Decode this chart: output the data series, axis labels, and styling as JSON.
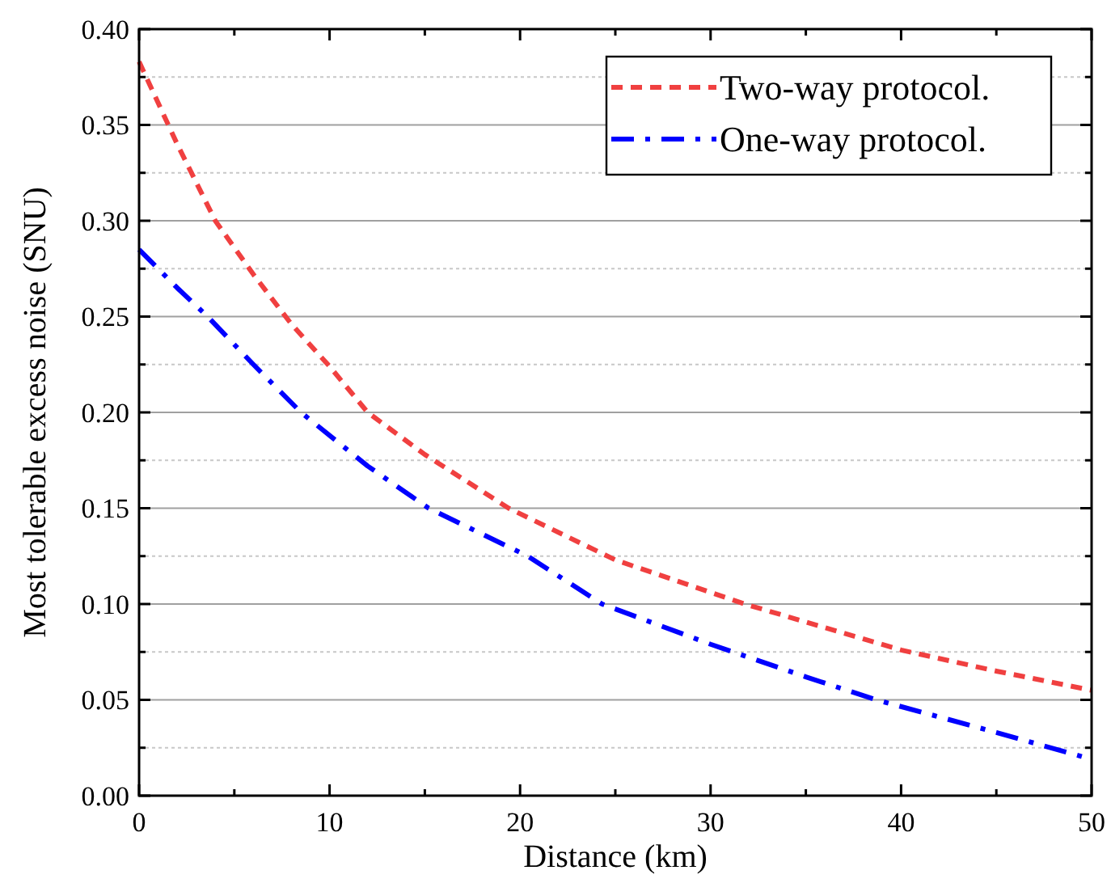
{
  "chart_data": {
    "type": "line",
    "xlabel": "Distance (km)",
    "ylabel": "Most tolerable excess noise (SNU)",
    "xlim": [
      0,
      50
    ],
    "xticks": [
      0,
      {
        "value": 5,
        "label": null
      },
      10,
      {
        "value": 15,
        "label": null
      },
      20,
      {
        "value": 25,
        "label": null
      },
      30,
      {
        "value": 35,
        "label": null
      },
      40,
      {
        "value": 45,
        "label": null
      },
      50
    ],
    "ylim": [
      0,
      0.4
    ],
    "yticks": [
      {
        "value": 0,
        "label": "0.00"
      },
      {
        "value": 0.025,
        "label": null
      },
      {
        "value": 0.05,
        "label": "0.05"
      },
      {
        "value": 0.075,
        "label": null
      },
      {
        "value": 0.1,
        "label": "0.10"
      },
      {
        "value": 0.125,
        "label": null
      },
      {
        "value": 0.15,
        "label": "0.15"
      },
      {
        "value": 0.175,
        "label": null
      },
      {
        "value": 0.2,
        "label": "0.20"
      },
      {
        "value": 0.225,
        "label": null
      },
      {
        "value": 0.25,
        "label": "0.25"
      },
      {
        "value": 0.275,
        "label": null
      },
      {
        "value": 0.3,
        "label": "0.30"
      },
      {
        "value": 0.325,
        "label": null
      },
      {
        "value": 0.35,
        "label": "0.35"
      },
      {
        "value": 0.375,
        "label": null
      },
      {
        "value": 0.4,
        "label": "0.40"
      }
    ],
    "grid": "y",
    "legend": "top right",
    "marker": "none",
    "series": [
      {
        "name": "Two-way protocol.",
        "color": "#f04040",
        "line_style": "dashed",
        "x": [
          0,
          2,
          4,
          6,
          8,
          10,
          12,
          15,
          19.4,
          25,
          31.8,
          40,
          45,
          50
        ],
        "values": [
          0.383,
          0.34,
          0.3,
          0.272,
          0.246,
          0.224,
          0.2,
          0.178,
          0.15,
          0.123,
          0.1,
          0.076,
          0.065,
          0.055
        ]
      },
      {
        "name": "One-way protocol.",
        "color": "#0000ff",
        "line_style": "dashdot",
        "x": [
          0,
          2,
          3.6,
          6,
          8.5,
          12,
          15.2,
          20.4,
          24.3,
          30,
          35,
          38.7,
          45,
          50
        ],
        "values": [
          0.285,
          0.265,
          0.25,
          0.225,
          0.2,
          0.172,
          0.15,
          0.125,
          0.1,
          0.079,
          0.062,
          0.05,
          0.033,
          0.019
        ]
      }
    ]
  }
}
